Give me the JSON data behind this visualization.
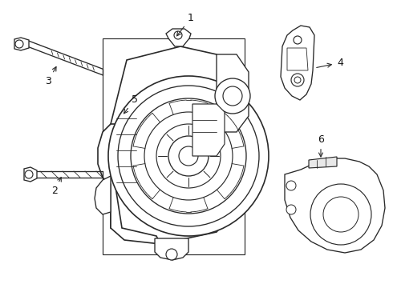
{
  "background_color": "#ffffff",
  "line_color": "#2a2a2a",
  "line_width": 1.2,
  "figsize": [
    4.9,
    3.6
  ],
  "dpi": 100
}
